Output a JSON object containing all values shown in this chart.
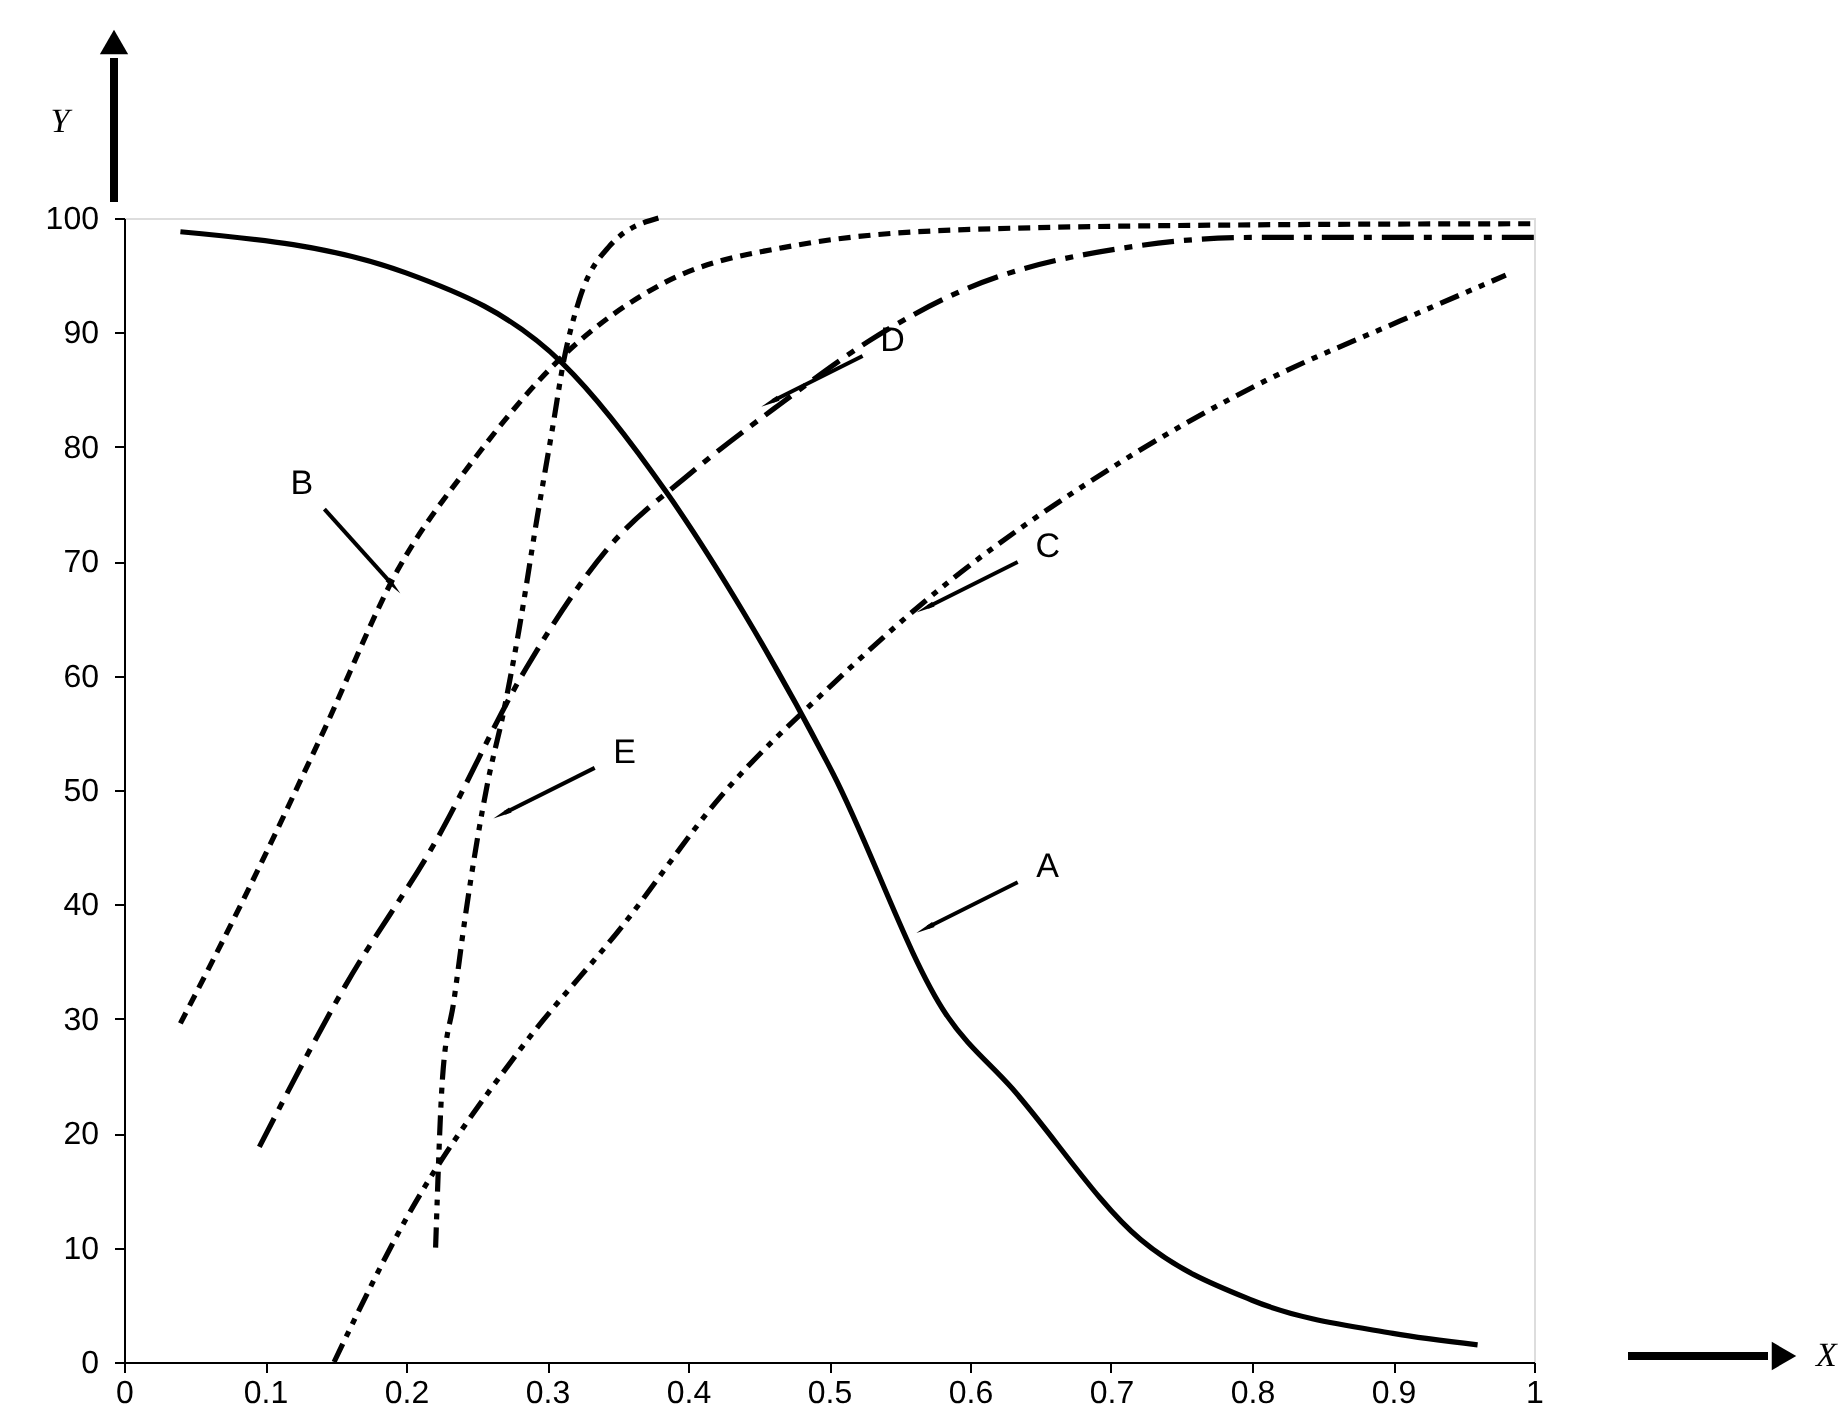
{
  "chart_data": {
    "type": "line",
    "ylabel": "Y",
    "xlim": [
      0,
      1
    ],
    "ylim": [
      0,
      100
    ],
    "xticks": [
      0,
      0.1,
      0.2,
      0.3,
      0.4,
      0.5,
      0.6,
      0.7,
      0.8,
      0.9,
      1
    ],
    "yticks": [
      0,
      10,
      20,
      30,
      40,
      50,
      60,
      70,
      80,
      90,
      100
    ],
    "grid": false,
    "series": [
      {
        "color": "#000000",
        "line_style": "solid",
        "x": [
          0.04,
          0.2,
          0.311,
          0.386,
          0.439,
          0.503,
          0.583,
          0.63,
          0.721,
          0.8,
          0.9,
          0.96
        ],
        "values": [
          98.8,
          95.2,
          87.3,
          75.8,
          65.6,
          51.4,
          30.4,
          23.9,
          10.7,
          5.4,
          2.5,
          1.5
        ]
      },
      {
        "color": "#000000",
        "line_style": "dashed",
        "x": [
          0.04,
          0.085,
          0.141,
          0.194,
          0.247,
          0.311,
          0.381,
          0.476,
          0.6,
          0.8,
          1.0
        ],
        "values": [
          29.6,
          40.5,
          55,
          69.2,
          78.7,
          87.9,
          94.2,
          97.6,
          99,
          99.4,
          99.5
        ]
      },
      {
        "color": "#000000",
        "line_style": "dashdotdot",
        "x": [
          0.149,
          0.2,
          0.279,
          0.354,
          0.423,
          0.503,
          0.57,
          0.697,
          0.81,
          0.905,
          0.98
        ],
        "values": [
          0,
          12.5,
          27,
          38.2,
          49.4,
          59.3,
          66.7,
          77.9,
          85.8,
          91,
          95
        ]
      },
      {
        "color": "#000000",
        "line_style": "dashdot",
        "x": [
          0.096,
          0.157,
          0.221,
          0.285,
          0.343,
          0.402,
          0.465,
          0.529,
          0.588,
          0.721,
          0.8,
          1.0
        ],
        "values": [
          18.8,
          32.9,
          45.5,
          60.6,
          71.1,
          77.7,
          83.7,
          89.3,
          93.3,
          97.6,
          98.3,
          98.3
        ]
      },
      {
        "color": "#000000",
        "line_style": "dashdotdot",
        "x": [
          0.221,
          0.226,
          0.234,
          0.242,
          0.258,
          0.269,
          0.28,
          0.293,
          0.304,
          0.312,
          0.323,
          0.344,
          0.379
        ],
        "values": [
          10,
          25,
          31.6,
          38.9,
          50.7,
          56.7,
          63.9,
          73.8,
          81.7,
          87.6,
          92.9,
          97.5,
          100
        ]
      }
    ],
    "annotations": [
      "X",
      {
        "text": "A",
        "x": 0.57,
        "y": 38
      },
      {
        "text": "B",
        "x": 0.19,
        "y": 68
      },
      {
        "text": "C",
        "x": 0.57,
        "y": 66
      },
      {
        "text": "D",
        "x": 0.46,
        "y": 84
      },
      {
        "text": "E",
        "x": 0.27,
        "y": 48
      }
    ]
  }
}
